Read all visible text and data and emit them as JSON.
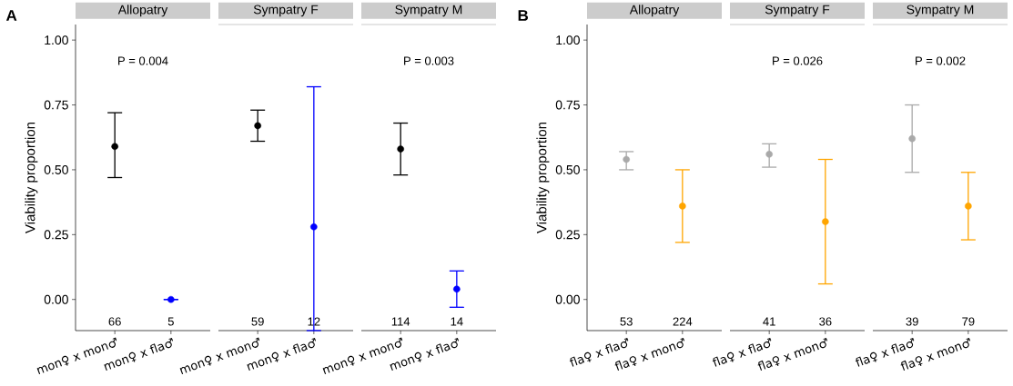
{
  "chart_data": [
    {
      "type": "scatter",
      "title": "Allopatry",
      "ylabel": "Viability proportion",
      "categories": [
        "mon♀ x mon♂",
        "mon♀ x fla♂"
      ],
      "values": [
        0.59,
        0.0
      ],
      "colors": [
        "#000000",
        "#0000ff"
      ],
      "errors": [
        [
          0.47,
          0.72
        ],
        [
          0.0,
          0.0
        ]
      ],
      "ylim": [
        -0.12,
        1.06
      ],
      "yticks": [
        {
          "value": 0,
          "label": "0.00"
        },
        {
          "value": 0.25,
          "label": "0.25"
        },
        {
          "value": 0.5,
          "label": "0.50"
        },
        {
          "value": 0.75,
          "label": "0.75"
        },
        {
          "value": 1,
          "label": "1.00"
        }
      ],
      "marker": "circle",
      "annotations": [
        "A",
        "P = 0.004",
        "66",
        "5"
      ]
    },
    {
      "type": "scatter",
      "title": "Sympatry F",
      "categories": [
        "mon♀ x mon♂",
        "mon♀ x fla♂"
      ],
      "values": [
        0.67,
        0.28
      ],
      "colors": [
        "#000000",
        "#0000ff"
      ],
      "errors": [
        [
          0.61,
          0.73
        ],
        [
          -0.12,
          0.82
        ]
      ],
      "ylim": [
        -0.12,
        1.06
      ],
      "tick_labels": "x",
      "marker": "circle",
      "annotations": [
        "59",
        "12"
      ]
    },
    {
      "type": "scatter",
      "title": "Sympatry M",
      "categories": [
        "mon♀ x mon♂",
        "mon♀ x fla♂"
      ],
      "values": [
        0.58,
        0.04
      ],
      "colors": [
        "#000000",
        "#0000ff"
      ],
      "errors": [
        [
          0.48,
          0.68
        ],
        [
          -0.03,
          0.11
        ]
      ],
      "ylim": [
        -0.12,
        1.06
      ],
      "tick_labels": "x",
      "marker": "circle",
      "annotations": [
        "P = 0.003",
        "114",
        "14"
      ]
    },
    {
      "type": "scatter",
      "title": "Allopatry",
      "ylabel": "Viability proportion",
      "categories": [
        "fla♀ x fla♂",
        "fla♀ x mon♂"
      ],
      "values": [
        0.54,
        0.36
      ],
      "colors": [
        "#a9a9a9",
        "#ffa500"
      ],
      "errors": [
        [
          0.5,
          0.57
        ],
        [
          0.22,
          0.5
        ]
      ],
      "ylim": [
        -0.12,
        1.06
      ],
      "yticks": [
        {
          "value": 0,
          "label": "0.00"
        },
        {
          "value": 0.25,
          "label": "0.25"
        },
        {
          "value": 0.5,
          "label": "0.50"
        },
        {
          "value": 0.75,
          "label": "0.75"
        },
        {
          "value": 1,
          "label": "1.00"
        }
      ],
      "marker": "circle",
      "annotations": [
        "B",
        "53",
        "224"
      ]
    },
    {
      "type": "scatter",
      "title": "Sympatry F",
      "categories": [
        "fla♀ x fla♂",
        "fla♀ x mon♂"
      ],
      "values": [
        0.56,
        0.3
      ],
      "colors": [
        "#a9a9a9",
        "#ffa500"
      ],
      "errors": [
        [
          0.51,
          0.6
        ],
        [
          0.06,
          0.54
        ]
      ],
      "ylim": [
        -0.12,
        1.06
      ],
      "tick_labels": "x",
      "marker": "circle",
      "annotations": [
        "P = 0.026",
        "41",
        "36"
      ]
    },
    {
      "type": "scatter",
      "title": "Sympatry M",
      "categories": [
        "fla♀ x fla♂",
        "fla♀ x mon♂"
      ],
      "values": [
        0.62,
        0.36
      ],
      "colors": [
        "#a9a9a9",
        "#ffa500"
      ],
      "errors": [
        [
          0.49,
          0.75
        ],
        [
          0.23,
          0.49
        ]
      ],
      "ylim": [
        -0.12,
        1.06
      ],
      "tick_labels": "x",
      "marker": "circle",
      "annotations": [
        "P = 0.002",
        "39",
        "79"
      ]
    }
  ]
}
